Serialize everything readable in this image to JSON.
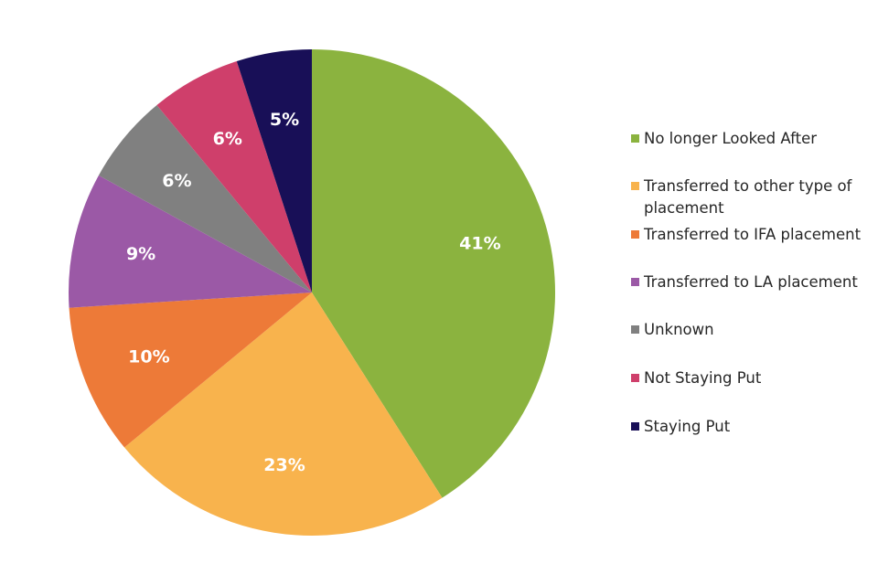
{
  "chart_data": {
    "type": "pie",
    "title": "",
    "slices": [
      {
        "label": "No longer Looked After",
        "value": 41,
        "display": "41%",
        "color": "#8bb33f"
      },
      {
        "label": "Transferred to other type of placement",
        "value": 23,
        "display": "23%",
        "color": "#f8b34d"
      },
      {
        "label": "Transferred to IFA placement",
        "value": 10,
        "display": "10%",
        "color": "#ed7a38"
      },
      {
        "label": "Transferred to LA placement",
        "value": 9,
        "display": "9%",
        "color": "#9b59a6"
      },
      {
        "label": "Unknown",
        "value": 6,
        "display": "6%",
        "color": "#808080"
      },
      {
        "label": "Not Staying Put",
        "value": 6,
        "display": "6%",
        "color": "#cf3f6b"
      },
      {
        "label": "Staying Put",
        "value": 5,
        "display": "5%",
        "color": "#180f57"
      }
    ],
    "legend_position": "right"
  }
}
